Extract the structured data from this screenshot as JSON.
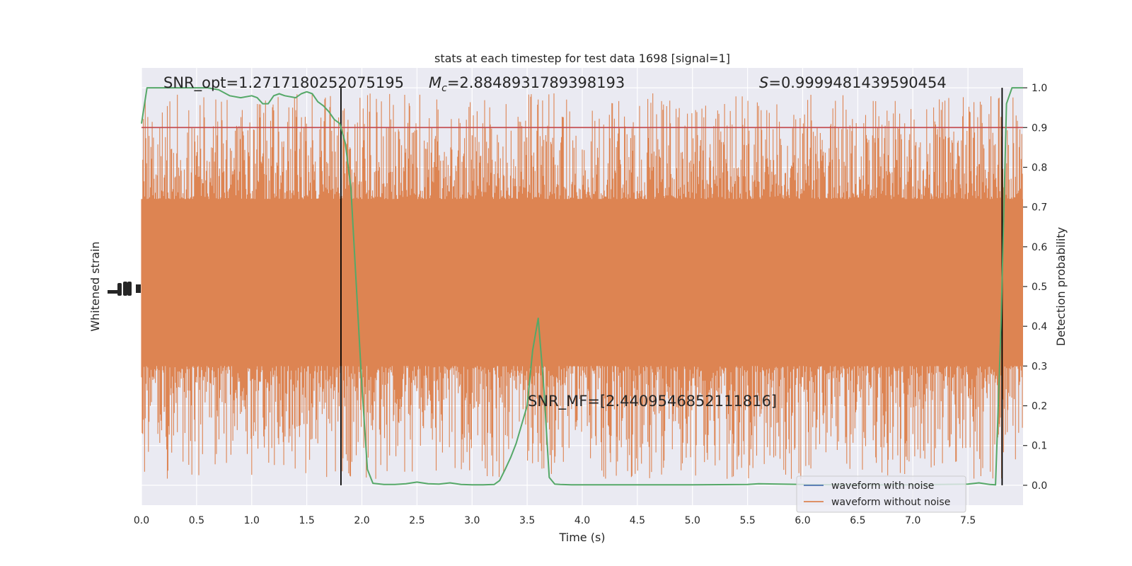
{
  "chart_data": {
    "type": "line",
    "title": "stats at each timestep for test data 1698 [signal=1]",
    "xlabel": "Time (s)",
    "ylabel_left": "Whitened strain",
    "ylabel_right": "Detection probability",
    "xlim": [
      0.0,
      8.0
    ],
    "ylim_right": [
      -0.05,
      1.05
    ],
    "x_ticks": [
      "0.0",
      "0.5",
      "1.0",
      "1.5",
      "2.0",
      "2.5",
      "3.0",
      "3.5",
      "4.0",
      "4.5",
      "5.0",
      "5.5",
      "6.0",
      "6.5",
      "7.0",
      "7.5"
    ],
    "x_tick_values": [
      0.0,
      0.5,
      1.0,
      1.5,
      2.0,
      2.5,
      3.0,
      3.5,
      4.0,
      4.5,
      5.0,
      5.5,
      6.0,
      6.5,
      7.0,
      7.5
    ],
    "right_ticks": [
      "0.0",
      "0.1",
      "0.2",
      "0.3",
      "0.4",
      "0.5",
      "0.6",
      "0.7",
      "0.8",
      "0.9",
      "1.0"
    ],
    "right_tick_values": [
      0.0,
      0.1,
      0.2,
      0.3,
      0.4,
      0.5,
      0.6,
      0.7,
      0.8,
      0.9,
      1.0
    ],
    "grid": true,
    "legend_position": "lower-right",
    "annotations": {
      "snr_opt": "SNR_opt=1.2717180252075195",
      "mc_symbol": "M",
      "mc_sub": "c",
      "mc_value": "=2.8848931789398193",
      "s_symbol": "S",
      "s_value": "=0.9999481439590454",
      "snr_mf": "SNR_MF=[2.4409546852111816]"
    },
    "threshold": {
      "value": 0.9,
      "color": "#c44e52"
    },
    "vertical_lines": [
      1.81,
      7.81
    ],
    "series": [
      {
        "name": "waveform with noise",
        "color": "#4c72b0"
      },
      {
        "name": "waveform without noise",
        "color": "#dd8452"
      }
    ],
    "noise_band": {
      "color": "#dd8452",
      "x_range": [
        0.0,
        8.0
      ],
      "dense_range": [
        0.3,
        0.72
      ],
      "spike_high": [
        0.72,
        1.0
      ],
      "spike_low": [
        0.0,
        0.3
      ]
    },
    "probability": {
      "color": "#55a868",
      "x": [
        0.0,
        0.05,
        0.1,
        0.2,
        0.3,
        0.4,
        0.5,
        0.6,
        0.7,
        0.8,
        0.9,
        1.0,
        1.05,
        1.1,
        1.15,
        1.2,
        1.25,
        1.3,
        1.4,
        1.45,
        1.5,
        1.55,
        1.6,
        1.65,
        1.7,
        1.75,
        1.8,
        1.85,
        1.9,
        1.95,
        2.0,
        2.05,
        2.1,
        2.2,
        2.3,
        2.4,
        2.5,
        2.6,
        2.7,
        2.8,
        2.9,
        3.0,
        3.1,
        3.2,
        3.25,
        3.3,
        3.35,
        3.4,
        3.5,
        3.55,
        3.6,
        3.65,
        3.7,
        3.75,
        3.8,
        3.9,
        4.0,
        4.5,
        5.0,
        5.5,
        5.6,
        6.0,
        6.5,
        7.0,
        7.5,
        7.6,
        7.7,
        7.75,
        7.8,
        7.85,
        7.9,
        7.95,
        8.0
      ],
      "y": [
        0.91,
        1.0,
        1.0,
        1.0,
        1.0,
        1.0,
        1.0,
        1.0,
        0.995,
        0.98,
        0.975,
        0.98,
        0.975,
        0.96,
        0.96,
        0.98,
        0.985,
        0.98,
        0.975,
        0.985,
        0.99,
        0.985,
        0.965,
        0.955,
        0.94,
        0.92,
        0.91,
        0.86,
        0.75,
        0.5,
        0.25,
        0.04,
        0.005,
        0.002,
        0.002,
        0.004,
        0.008,
        0.004,
        0.003,
        0.006,
        0.002,
        0.001,
        0.001,
        0.002,
        0.012,
        0.04,
        0.07,
        0.105,
        0.2,
        0.34,
        0.42,
        0.25,
        0.02,
        0.003,
        0.002,
        0.001,
        0.001,
        0.001,
        0.001,
        0.002,
        0.004,
        0.002,
        0.001,
        0.001,
        0.003,
        0.006,
        0.002,
        0.001,
        0.4,
        0.96,
        1.0,
        1.0,
        1.0
      ]
    }
  }
}
